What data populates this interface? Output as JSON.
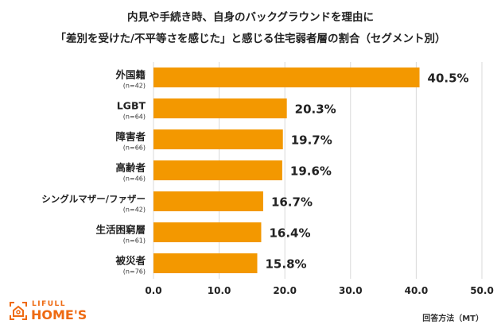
{
  "chart_data": {
    "type": "bar",
    "orientation": "horizontal",
    "title_lines": [
      "内見や手続き時、自身のバックグラウンドを理由に",
      "「差別を受けた/不平等さを感じた」と感じる住宅弱者層の割合（セグメント別）"
    ],
    "categories": [
      "外国籍",
      "LGBT",
      "障害者",
      "高齢者",
      "シングルマザー/ファザー",
      "生活困窮層",
      "被災者"
    ],
    "sample_sizes": [
      "(n=42)",
      "(n=64)",
      "(n=66)",
      "(n=46)",
      "(n=42)",
      "(n=61)",
      "(n=76)"
    ],
    "values": [
      40.5,
      20.3,
      19.7,
      19.6,
      16.7,
      16.4,
      15.8
    ],
    "data_labels": [
      "40.5%",
      "20.3%",
      "19.7%",
      "19.6%",
      "16.7%",
      "16.4%",
      "15.8%"
    ],
    "xlim": [
      0,
      50
    ],
    "xticks": [
      "0.0",
      "10.0",
      "20.0",
      "30.0",
      "40.0",
      "50.0"
    ],
    "grid": true,
    "bar_color": "#F39800",
    "highlight_category": "外国籍"
  },
  "footer": {
    "logo_top": "LIFULL",
    "logo_bottom": "HOME'S",
    "note": "回答方法（MT）"
  },
  "colors": {
    "logo": "#EE6A12"
  }
}
